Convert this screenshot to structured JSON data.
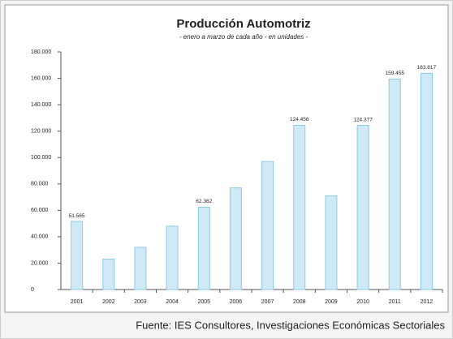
{
  "chart_data": {
    "type": "bar",
    "title": "Producción Automotriz",
    "subtitle": "- enero a marzo de cada año - en unidades -",
    "categories": [
      "2001",
      "2002",
      "2003",
      "2004",
      "2005",
      "2006",
      "2007",
      "2008",
      "2009",
      "2010",
      "2011",
      "2012"
    ],
    "values": [
      51565,
      23000,
      32000,
      48000,
      62362,
      77000,
      97000,
      124456,
      71000,
      124377,
      159455,
      163817
    ],
    "value_labels": [
      "51.565",
      null,
      null,
      null,
      "62.362",
      null,
      null,
      "124.456",
      null,
      "124.377",
      "159.455",
      "163.817"
    ],
    "color": "#cfeaf6",
    "edge_color": "#8ccbe6",
    "ylim": [
      0,
      180000
    ],
    "yticks": [
      0,
      {
        "value": 20000,
        "label": "20.000"
      },
      {
        "value": 40000,
        "label": "40.000"
      },
      {
        "value": 60000,
        "label": "60.000"
      },
      {
        "value": 80000,
        "label": "80.000"
      },
      {
        "value": 100000,
        "label": "100.000"
      },
      {
        "value": 120000,
        "label": "120.000"
      },
      {
        "value": 140000,
        "label": "140.000"
      },
      {
        "value": 160000,
        "label": "160.000"
      },
      {
        "value": 180000,
        "label": "180.000"
      }
    ],
    "grid": false
  },
  "source": "Fuente: IES Consultores, Investigaciones Económicas Sectoriales"
}
